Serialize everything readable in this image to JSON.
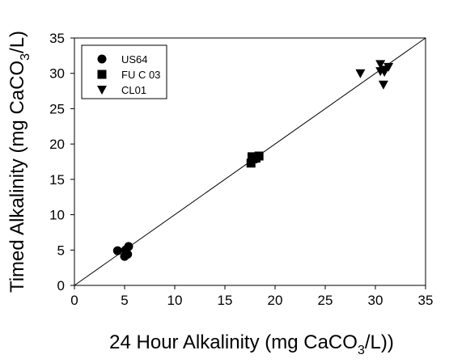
{
  "chart_data": {
    "type": "scatter",
    "xlabel_main": "24 Hour Alkalinity (mg CaCO",
    "xlabel_sub": "3",
    "xlabel_tail": "/L))",
    "ylabel_main": "Timed Alkalinity (mg CaCO",
    "ylabel_sub": "3",
    "ylabel_tail": "/L)",
    "xlim": [
      0,
      35
    ],
    "ylim": [
      0,
      35
    ],
    "x_ticks": [
      "0",
      "5",
      "10",
      "15",
      "20",
      "25",
      "30",
      "35"
    ],
    "y_ticks": [
      "0",
      "5",
      "10",
      "15",
      "20",
      "25",
      "30",
      "35"
    ],
    "grid": false,
    "legend_position": "top-left",
    "reference_line": {
      "x": [
        0,
        35
      ],
      "y": [
        0,
        35
      ]
    },
    "series": [
      {
        "name": "US64",
        "marker": "circle",
        "x": [
          4.3,
          5.1,
          5.4,
          5.3,
          5.0
        ],
        "y": [
          4.9,
          5.0,
          5.5,
          4.4,
          4.1
        ]
      },
      {
        "name": "FU C 03",
        "marker": "square",
        "x": [
          17.6,
          17.7,
          18.1,
          18.4,
          17.8
        ],
        "y": [
          17.3,
          18.2,
          18.0,
          18.3,
          17.9
        ]
      },
      {
        "name": "CL01",
        "marker": "triangle-down",
        "x": [
          28.5,
          30.5,
          30.5,
          30.8,
          31.0,
          31.3,
          30.9
        ],
        "y": [
          30.0,
          31.3,
          30.3,
          28.4,
          30.5,
          30.9,
          30.2
        ]
      }
    ]
  }
}
